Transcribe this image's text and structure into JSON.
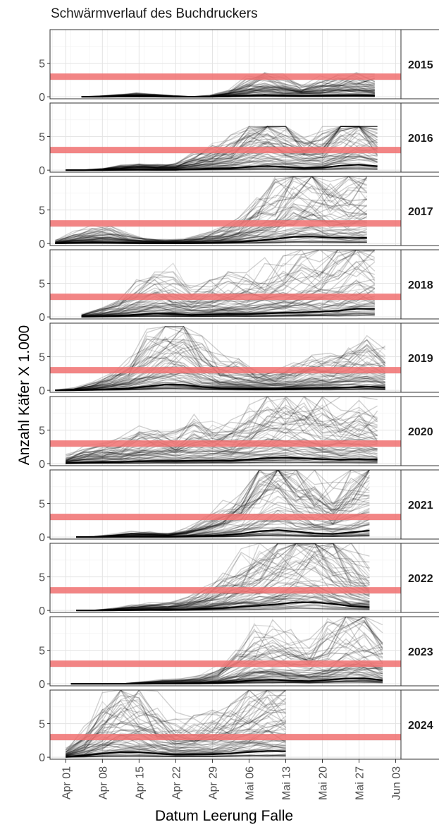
{
  "chart_data": {
    "type": "line",
    "title": "Schwärmverlauf des Buchdruckers",
    "xlabel": "Datum Leerung Falle",
    "ylabel": "Anzahl Käfer X 1.000",
    "x_ticks": [
      "Apr 01",
      "Apr 08",
      "Apr 15",
      "Apr 22",
      "Apr 29",
      "Mai 06",
      "Mai 13",
      "Mai 20",
      "Mai 27",
      "Jun 03"
    ],
    "x_tick_days": [
      0,
      7,
      14,
      21,
      28,
      35,
      42,
      49,
      56,
      63
    ],
    "xlim_days": [
      -3,
      64
    ],
    "y_ticks": [
      0,
      5
    ],
    "ylim": [
      -0.3,
      10
    ],
    "threshold": {
      "value": 3,
      "color": "#f07070"
    },
    "line_color": "#000000",
    "grid": true,
    "facets": [
      {
        "label": "2015",
        "start_day": 3,
        "end_day": 61,
        "peaks": [
          [
            14,
            0.15
          ],
          [
            38,
            1.1
          ],
          [
            51,
            0.7
          ],
          [
            58,
            0.8
          ]
        ],
        "max_value": 3.8
      },
      {
        "label": "2016",
        "start_day": 0,
        "end_day": 61,
        "peaks": [
          [
            14,
            0.25
          ],
          [
            28,
            0.8
          ],
          [
            38,
            2.3
          ],
          [
            45,
            0.6
          ],
          [
            54,
            2.1
          ],
          [
            58,
            1.6
          ]
        ],
        "max_value": 6.5
      },
      {
        "label": "2017",
        "start_day": -2,
        "end_day": 60,
        "peaks": [
          [
            6,
            0.7
          ],
          [
            16,
            0.15
          ],
          [
            28,
            0.3
          ],
          [
            36,
            1.1
          ],
          [
            44,
            3.2
          ],
          [
            50,
            2.2
          ],
          [
            58,
            3.0
          ]
        ],
        "max_value": 10.0
      },
      {
        "label": "2018",
        "start_day": 3,
        "end_day": 61,
        "peaks": [
          [
            10,
            0.4
          ],
          [
            18,
            2.0
          ],
          [
            30,
            1.6
          ],
          [
            40,
            2.0
          ],
          [
            48,
            2.3
          ],
          [
            56,
            3.2
          ],
          [
            60,
            2.7
          ]
        ],
        "max_value": 10.0
      },
      {
        "label": "2019",
        "start_day": -2,
        "end_day": 61,
        "peaks": [
          [
            10,
            0.6
          ],
          [
            18,
            1.6
          ],
          [
            22,
            2.4
          ],
          [
            32,
            1.0
          ],
          [
            40,
            0.5
          ],
          [
            48,
            1.3
          ],
          [
            58,
            2.2
          ]
        ],
        "max_value": 9.5
      },
      {
        "label": "2020",
        "start_day": 0,
        "end_day": 61,
        "peaks": [
          [
            6,
            0.8
          ],
          [
            16,
            1.5
          ],
          [
            26,
            1.8
          ],
          [
            36,
            2.0
          ],
          [
            42,
            2.3
          ],
          [
            48,
            1.8
          ],
          [
            56,
            1.7
          ],
          [
            60,
            1.2
          ]
        ],
        "max_value": 10.0
      },
      {
        "label": "2021",
        "start_day": 2,
        "end_day": 60,
        "peaks": [
          [
            14,
            0.2
          ],
          [
            28,
            0.6
          ],
          [
            36,
            1.5
          ],
          [
            41,
            3.2
          ],
          [
            48,
            1.1
          ],
          [
            56,
            1.5
          ],
          [
            60,
            2.8
          ]
        ],
        "max_value": 10.0
      },
      {
        "label": "2022",
        "start_day": 2,
        "end_day": 61,
        "peaks": [
          [
            16,
            0.3
          ],
          [
            28,
            0.8
          ],
          [
            36,
            2.2
          ],
          [
            44,
            2.9
          ],
          [
            48,
            3.4
          ],
          [
            56,
            1.5
          ],
          [
            61,
            0.6
          ]
        ],
        "max_value": 10.0
      },
      {
        "label": "2023",
        "start_day": 1,
        "end_day": 61,
        "peaks": [
          [
            20,
            0.15
          ],
          [
            30,
            0.4
          ],
          [
            38,
            2.2
          ],
          [
            44,
            0.7
          ],
          [
            52,
            2.0
          ],
          [
            58,
            2.4
          ]
        ],
        "max_value": 10.0
      },
      {
        "label": "2024",
        "start_day": 0,
        "end_day": 43,
        "peaks": [
          [
            8,
            1.8
          ],
          [
            14,
            2.2
          ],
          [
            20,
            0.5
          ],
          [
            26,
            1.2
          ],
          [
            34,
            1.9
          ],
          [
            40,
            2.0
          ],
          [
            43,
            1.6
          ]
        ],
        "max_value": 10.0
      }
    ]
  }
}
